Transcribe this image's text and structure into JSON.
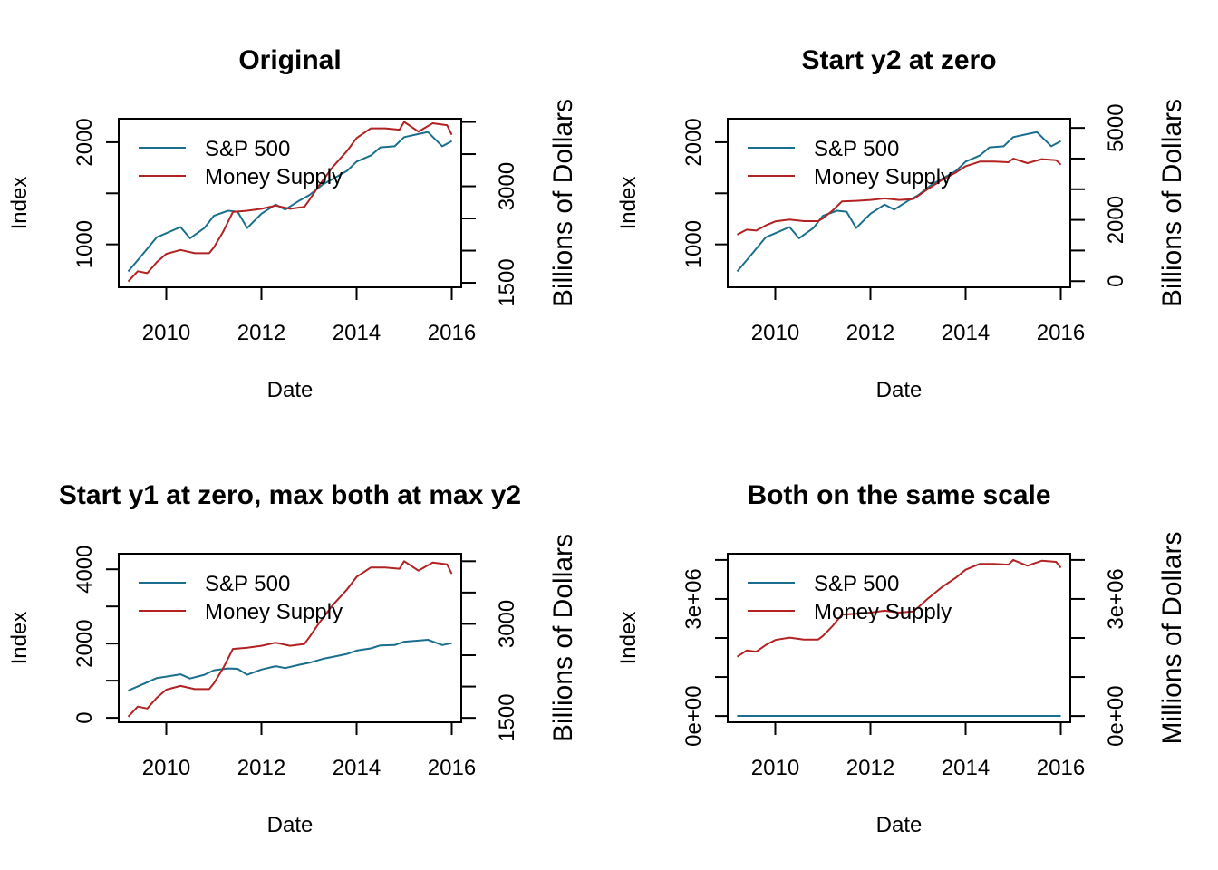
{
  "colors": {
    "sp500": "#1b6f8e",
    "money": "#b22222"
  },
  "chart_data": [
    {
      "type": "line",
      "title": "Original",
      "xlabel": "Date",
      "ylabel": "Index",
      "y2label": "Billions of Dollars",
      "legend": [
        "S&P 500",
        "Money Supply"
      ],
      "legend_position": "top-left",
      "xlim": [
        2009.0,
        2016.2
      ],
      "xticks": [
        2010,
        2012,
        2014,
        2016
      ],
      "xtick_labels": [
        "2010",
        "2012",
        "2014",
        "2016"
      ],
      "ylim": [
        580,
        2230
      ],
      "yticks": [
        1000,
        1500,
        2000
      ],
      "ytick_labels": [
        "1000",
        "",
        "2000"
      ],
      "y2lim": [
        1430,
        4050
      ],
      "y2ticks": [
        1500,
        2000,
        2500,
        3000,
        3500,
        4000
      ],
      "y2tick_labels": [
        "1500",
        "",
        "",
        "3000",
        "",
        ""
      ],
      "series": [
        {
          "name": "S&P 500",
          "axis": "left",
          "color": "sp500",
          "x": [
            2009.2,
            2009.5,
            2009.8,
            2010.0,
            2010.3,
            2010.5,
            2010.8,
            2011.0,
            2011.3,
            2011.5,
            2011.7,
            2012.0,
            2012.3,
            2012.5,
            2012.8,
            2013.0,
            2013.3,
            2013.5,
            2013.8,
            2014.0,
            2014.3,
            2014.5,
            2014.8,
            2015.0,
            2015.3,
            2015.5,
            2015.8,
            2016.0
          ],
          "values": [
            735,
            900,
            1070,
            1110,
            1170,
            1060,
            1160,
            1280,
            1330,
            1320,
            1160,
            1300,
            1390,
            1340,
            1430,
            1480,
            1590,
            1640,
            1720,
            1810,
            1870,
            1950,
            1960,
            2050,
            2080,
            2100,
            1960,
            2010
          ]
        },
        {
          "name": "Money Supply",
          "axis": "right",
          "color": "money",
          "x": [
            2009.2,
            2009.4,
            2009.6,
            2009.8,
            2010.0,
            2010.3,
            2010.6,
            2010.9,
            2011.0,
            2011.2,
            2011.4,
            2011.7,
            2012.0,
            2012.3,
            2012.6,
            2012.9,
            2013.0,
            2013.2,
            2013.5,
            2013.8,
            2014.0,
            2014.3,
            2014.6,
            2014.9,
            2015.0,
            2015.3,
            2015.6,
            2015.9,
            2016.0
          ],
          "values": [
            1520,
            1680,
            1650,
            1820,
            1950,
            2010,
            1960,
            1960,
            2050,
            2300,
            2600,
            2620,
            2650,
            2700,
            2650,
            2680,
            2780,
            3000,
            3300,
            3550,
            3750,
            3900,
            3900,
            3880,
            4000,
            3850,
            3980,
            3950,
            3800
          ]
        }
      ]
    },
    {
      "type": "line",
      "title": "Start y2 at zero",
      "xlabel": "Date",
      "ylabel": "Index",
      "y2label": "Billions of Dollars",
      "legend": [
        "S&P 500",
        "Money Supply"
      ],
      "legend_position": "top-left",
      "xlim": [
        2009.0,
        2016.2
      ],
      "xticks": [
        2010,
        2012,
        2014,
        2016
      ],
      "xtick_labels": [
        "2010",
        "2012",
        "2014",
        "2016"
      ],
      "ylim": [
        580,
        2230
      ],
      "yticks": [
        1000,
        1500,
        2000
      ],
      "ytick_labels": [
        "1000",
        "",
        "2000"
      ],
      "y2lim": [
        -200,
        5300
      ],
      "y2ticks": [
        0,
        1000,
        2000,
        3000,
        4000,
        5000
      ],
      "y2tick_labels": [
        "0",
        "",
        "2000",
        "",
        "",
        "5000"
      ],
      "series": [
        {
          "name": "S&P 500",
          "axis": "left",
          "color": "sp500",
          "x": [
            2009.2,
            2009.5,
            2009.8,
            2010.0,
            2010.3,
            2010.5,
            2010.8,
            2011.0,
            2011.3,
            2011.5,
            2011.7,
            2012.0,
            2012.3,
            2012.5,
            2012.8,
            2013.0,
            2013.3,
            2013.5,
            2013.8,
            2014.0,
            2014.3,
            2014.5,
            2014.8,
            2015.0,
            2015.3,
            2015.5,
            2015.8,
            2016.0
          ],
          "values": [
            735,
            900,
            1070,
            1110,
            1170,
            1060,
            1160,
            1280,
            1330,
            1320,
            1160,
            1300,
            1390,
            1340,
            1430,
            1480,
            1590,
            1640,
            1720,
            1810,
            1870,
            1950,
            1960,
            2050,
            2080,
            2100,
            1960,
            2010
          ]
        },
        {
          "name": "Money Supply",
          "axis": "right",
          "color": "money",
          "x": [
            2009.2,
            2009.4,
            2009.6,
            2009.8,
            2010.0,
            2010.3,
            2010.6,
            2010.9,
            2011.0,
            2011.2,
            2011.4,
            2011.7,
            2012.0,
            2012.3,
            2012.6,
            2012.9,
            2013.0,
            2013.2,
            2013.5,
            2013.8,
            2014.0,
            2014.3,
            2014.6,
            2014.9,
            2015.0,
            2015.3,
            2015.6,
            2015.9,
            2016.0
          ],
          "values": [
            1520,
            1680,
            1650,
            1820,
            1950,
            2010,
            1960,
            1960,
            2050,
            2300,
            2600,
            2620,
            2650,
            2700,
            2650,
            2680,
            2780,
            3000,
            3300,
            3550,
            3750,
            3900,
            3900,
            3880,
            4000,
            3850,
            3980,
            3950,
            3800
          ]
        }
      ]
    },
    {
      "type": "line",
      "title": "Start y1 at zero, max both at max y2",
      "xlabel": "Date",
      "ylabel": "Index",
      "y2label": "Billions of Dollars",
      "legend": [
        "S&P 500",
        "Money Supply"
      ],
      "legend_position": "top-left",
      "xlim": [
        2009.0,
        2016.2
      ],
      "xticks": [
        2010,
        2012,
        2014,
        2016
      ],
      "xtick_labels": [
        "2010",
        "2012",
        "2014",
        "2016"
      ],
      "ylim": [
        -120,
        4420
      ],
      "yticks": [
        0,
        1000,
        2000,
        3000,
        4000
      ],
      "ytick_labels": [
        "0",
        "",
        "2000",
        "",
        "4000"
      ],
      "y2lim": [
        1430,
        4120
      ],
      "y2ticks": [
        1500,
        2000,
        2500,
        3000,
        3500,
        4000
      ],
      "y2tick_labels": [
        "1500",
        "",
        "",
        "3000",
        "",
        ""
      ],
      "series": [
        {
          "name": "S&P 500",
          "axis": "left",
          "color": "sp500",
          "x": [
            2009.2,
            2009.5,
            2009.8,
            2010.0,
            2010.3,
            2010.5,
            2010.8,
            2011.0,
            2011.3,
            2011.5,
            2011.7,
            2012.0,
            2012.3,
            2012.5,
            2012.8,
            2013.0,
            2013.3,
            2013.5,
            2013.8,
            2014.0,
            2014.3,
            2014.5,
            2014.8,
            2015.0,
            2015.3,
            2015.5,
            2015.8,
            2016.0
          ],
          "values": [
            735,
            900,
            1070,
            1110,
            1170,
            1060,
            1160,
            1280,
            1330,
            1320,
            1160,
            1300,
            1390,
            1340,
            1430,
            1480,
            1590,
            1640,
            1720,
            1810,
            1870,
            1950,
            1960,
            2050,
            2080,
            2100,
            1960,
            2010
          ]
        },
        {
          "name": "Money Supply",
          "axis": "right",
          "color": "money",
          "x": [
            2009.2,
            2009.4,
            2009.6,
            2009.8,
            2010.0,
            2010.3,
            2010.6,
            2010.9,
            2011.0,
            2011.2,
            2011.4,
            2011.7,
            2012.0,
            2012.3,
            2012.6,
            2012.9,
            2013.0,
            2013.2,
            2013.5,
            2013.8,
            2014.0,
            2014.3,
            2014.6,
            2014.9,
            2015.0,
            2015.3,
            2015.6,
            2015.9,
            2016.0
          ],
          "values": [
            1520,
            1680,
            1650,
            1820,
            1950,
            2010,
            1960,
            1960,
            2050,
            2300,
            2600,
            2620,
            2650,
            2700,
            2650,
            2680,
            2780,
            3000,
            3300,
            3550,
            3750,
            3900,
            3900,
            3880,
            4000,
            3850,
            3980,
            3950,
            3800
          ]
        }
      ]
    },
    {
      "type": "line",
      "title": "Both on the same scale",
      "xlabel": "Date",
      "ylabel": "Index",
      "y2label": "Millions of Dollars",
      "legend": [
        "S&P 500",
        "Money Supply"
      ],
      "legend_position": "top-left",
      "xlim": [
        2009.0,
        2016.2
      ],
      "xticks": [
        2010,
        2012,
        2014,
        2016
      ],
      "xtick_labels": [
        "2010",
        "2012",
        "2014",
        "2016"
      ],
      "ylim": [
        -160000,
        4160000
      ],
      "yticks": [
        0,
        1000000,
        2000000,
        3000000,
        4000000
      ],
      "ytick_labels": [
        "0e+00",
        "",
        "",
        "3e+06",
        ""
      ],
      "y2lim": [
        -160000,
        4160000
      ],
      "y2ticks": [
        0,
        1000000,
        2000000,
        3000000,
        4000000
      ],
      "y2tick_labels": [
        "0e+00",
        "",
        "",
        "3e+06",
        ""
      ],
      "series": [
        {
          "name": "S&P 500",
          "axis": "left",
          "color": "sp500",
          "x": [
            2009.2,
            2016.0
          ],
          "values": [
            1500,
            2000
          ]
        },
        {
          "name": "Money Supply",
          "axis": "right",
          "color": "money",
          "x": [
            2009.2,
            2009.4,
            2009.6,
            2009.8,
            2010.0,
            2010.3,
            2010.6,
            2010.9,
            2011.0,
            2011.2,
            2011.4,
            2011.7,
            2012.0,
            2012.3,
            2012.6,
            2012.9,
            2013.0,
            2013.2,
            2013.5,
            2013.8,
            2014.0,
            2014.3,
            2014.6,
            2014.9,
            2015.0,
            2015.3,
            2015.6,
            2015.9,
            2016.0
          ],
          "values": [
            1520000,
            1680000,
            1650000,
            1820000,
            1950000,
            2010000,
            1960000,
            1960000,
            2050000,
            2300000,
            2600000,
            2620000,
            2650000,
            2700000,
            2650000,
            2680000,
            2780000,
            3000000,
            3300000,
            3550000,
            3750000,
            3900000,
            3900000,
            3880000,
            4000000,
            3850000,
            3980000,
            3950000,
            3800000
          ]
        }
      ]
    }
  ]
}
